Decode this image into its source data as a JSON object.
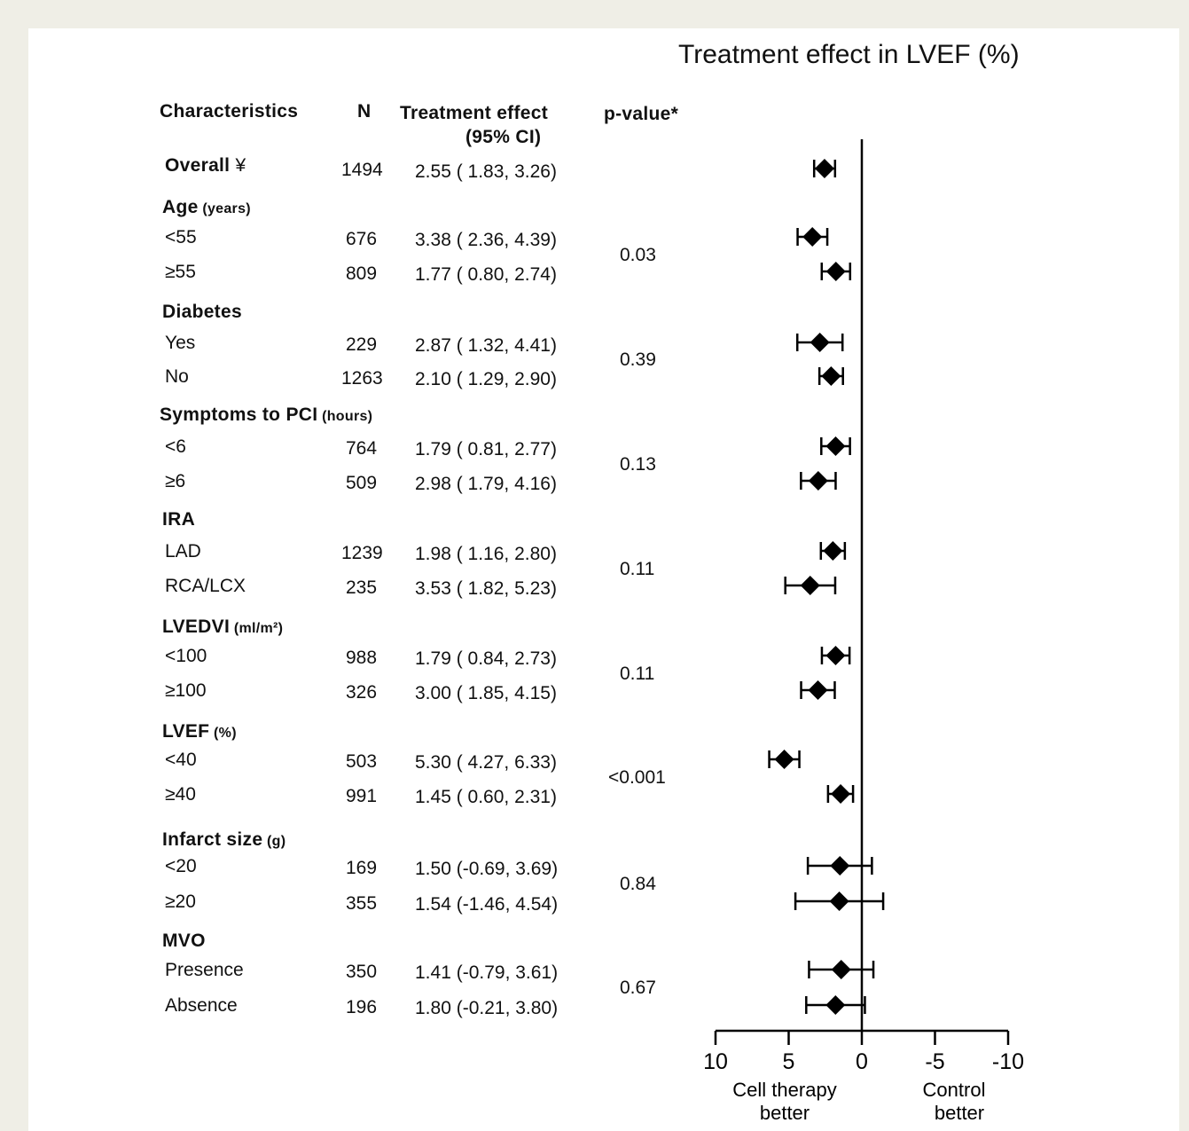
{
  "chart_data": {
    "type": "forest",
    "title": "Treatment effect in LVEF (%)",
    "headers": {
      "characteristics": "Characteristics",
      "n": "N",
      "effect_line1": "Treatment effect",
      "effect_line2": "(95% CI)",
      "pvalue": "p-value*"
    },
    "xaxis": {
      "ticks": [
        10,
        5,
        0,
        -5,
        -10
      ],
      "tick_labels": [
        "10",
        "5",
        "0",
        "-5",
        "-10"
      ],
      "reversed": true,
      "range": [
        10,
        -10
      ],
      "left_label_line1": "Cell therapy",
      "left_label_line2": "better",
      "right_label_line1": "Control",
      "right_label_line2": "better"
    },
    "groups": [
      {
        "label": "Overall",
        "suffix": "¥",
        "unit": "",
        "p": "",
        "rows": [
          {
            "label": "",
            "n": "1494",
            "ci_text": "2.55 ( 1.83, 3.26)",
            "est": 2.55,
            "lo": 1.83,
            "hi": 3.26
          }
        ]
      },
      {
        "label": "Age",
        "unit": "(years)",
        "p": "0.03",
        "rows": [
          {
            "label": "<55",
            "n": "676",
            "ci_text": "3.38 ( 2.36, 4.39)",
            "est": 3.38,
            "lo": 2.36,
            "hi": 4.39
          },
          {
            "label": "≥55",
            "n": "809",
            "ci_text": "1.77 ( 0.80, 2.74)",
            "est": 1.77,
            "lo": 0.8,
            "hi": 2.74
          }
        ]
      },
      {
        "label": "Diabetes",
        "unit": "",
        "p": "0.39",
        "rows": [
          {
            "label": "Yes",
            "n": "229",
            "ci_text": "2.87 ( 1.32, 4.41)",
            "est": 2.87,
            "lo": 1.32,
            "hi": 4.41
          },
          {
            "label": "No",
            "n": "1263",
            "ci_text": "2.10 ( 1.29, 2.90)",
            "est": 2.1,
            "lo": 1.29,
            "hi": 2.9
          }
        ]
      },
      {
        "label": "Symptoms to PCI",
        "unit": "(hours)",
        "p": "0.13",
        "rows": [
          {
            "label": "<6",
            "n": "764",
            "ci_text": "1.79 ( 0.81, 2.77)",
            "est": 1.79,
            "lo": 0.81,
            "hi": 2.77
          },
          {
            "label": "≥6",
            "n": "509",
            "ci_text": "2.98 ( 1.79, 4.16)",
            "est": 2.98,
            "lo": 1.79,
            "hi": 4.16
          }
        ]
      },
      {
        "label": "IRA",
        "unit": "",
        "p": "0.11",
        "rows": [
          {
            "label": "LAD",
            "n": "1239",
            "ci_text": "1.98 ( 1.16, 2.80)",
            "est": 1.98,
            "lo": 1.16,
            "hi": 2.8
          },
          {
            "label": "RCA/LCX",
            "n": "235",
            "ci_text": "3.53 ( 1.82, 5.23)",
            "est": 3.53,
            "lo": 1.82,
            "hi": 5.23
          }
        ]
      },
      {
        "label": "LVEDVI",
        "unit": "(ml/m²)",
        "p": "0.11",
        "rows": [
          {
            "label": "<100",
            "n": "988",
            "ci_text": "1.79 ( 0.84, 2.73)",
            "est": 1.79,
            "lo": 0.84,
            "hi": 2.73
          },
          {
            "label": "≥100",
            "n": "326",
            "ci_text": "3.00 ( 1.85, 4.15)",
            "est": 3.0,
            "lo": 1.85,
            "hi": 4.15
          }
        ]
      },
      {
        "label": "LVEF",
        "unit": "(%)",
        "p": "<0.001",
        "rows": [
          {
            "label": "<40",
            "n": "503",
            "ci_text": "5.30 ( 4.27, 6.33)",
            "est": 5.3,
            "lo": 4.27,
            "hi": 6.33
          },
          {
            "label": "≥40",
            "n": "991",
            "ci_text": "1.45 ( 0.60, 2.31)",
            "est": 1.45,
            "lo": 0.6,
            "hi": 2.31
          }
        ]
      },
      {
        "label": "Infarct size",
        "unit": "(g)",
        "p": "0.84",
        "rows": [
          {
            "label": "<20",
            "n": "169",
            "ci_text": "1.50 (-0.69, 3.69)",
            "est": 1.5,
            "lo": -0.69,
            "hi": 3.69
          },
          {
            "label": "≥20",
            "n": "355",
            "ci_text": "1.54 (-1.46, 4.54)",
            "est": 1.54,
            "lo": -1.46,
            "hi": 4.54
          }
        ]
      },
      {
        "label": "MVO",
        "unit": "",
        "p": "0.67",
        "rows": [
          {
            "label": "Presence",
            "n": "350",
            "ci_text": "1.41  (-0.79, 3.61)",
            "est": 1.41,
            "lo": -0.79,
            "hi": 3.61
          },
          {
            "label": "Absence",
            "n": "196",
            "ci_text": "1.80  (-0.21, 3.80)",
            "est": 1.8,
            "lo": -0.21,
            "hi": 3.8
          }
        ]
      }
    ]
  }
}
